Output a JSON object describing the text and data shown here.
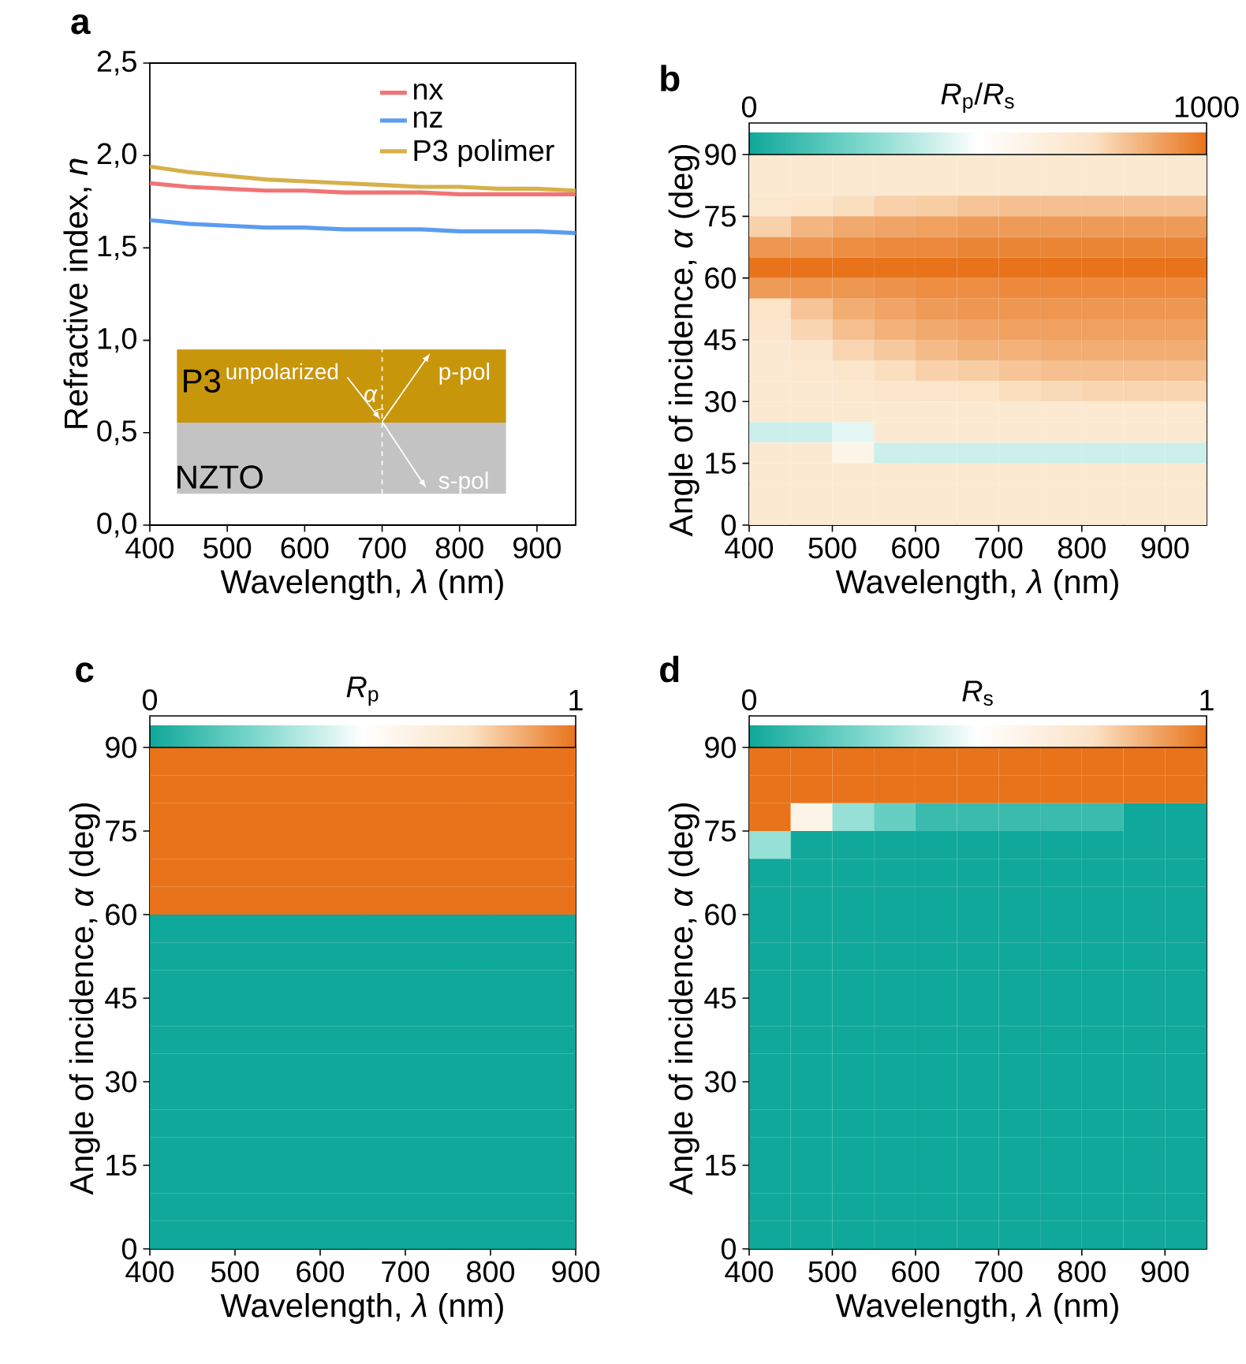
{
  "chart_data": [
    {
      "type": "line",
      "title": "**a**",
      "xlabel": "Wavelength, *λ* (nm)",
      "ylabel": "Refractive index, *n*",
      "x": [
        400,
        450,
        500,
        550,
        600,
        650,
        700,
        750,
        800,
        850,
        900,
        950
      ],
      "series": [
        {
          "name": "nx",
          "color": "#f07474",
          "values": [
            1.85,
            1.83,
            1.82,
            1.81,
            1.81,
            1.8,
            1.8,
            1.8,
            1.79,
            1.79,
            1.79,
            1.79
          ]
        },
        {
          "name": "nz",
          "color": "#5b9cf0",
          "values": [
            1.65,
            1.63,
            1.62,
            1.61,
            1.61,
            1.6,
            1.6,
            1.6,
            1.59,
            1.59,
            1.59,
            1.58
          ]
        },
        {
          "name": "P3 polimer",
          "color": "#d6b04a",
          "values": [
            1.94,
            1.91,
            1.89,
            1.87,
            1.86,
            1.85,
            1.84,
            1.83,
            1.83,
            1.82,
            1.82,
            1.81
          ]
        }
      ],
      "xlim": [
        400,
        950
      ],
      "ylim": [
        0,
        2.5
      ],
      "xticks": [
        400,
        500,
        600,
        700,
        800,
        900
      ],
      "yticks": [
        {
          "value": 0,
          "label": "0,0"
        },
        {
          "value": 0.5,
          "label": "0,5"
        },
        {
          "value": 1,
          "label": "1,0"
        },
        {
          "value": 1.5,
          "label": "1,5"
        },
        {
          "value": 2,
          "label": "2,0"
        },
        {
          "value": 2.5,
          "label": "2,5"
        }
      ],
      "legend": "top right",
      "marker": "none",
      "line_style": "solid",
      "annotations": [
        "P3",
        "unpolarized",
        "*α*",
        "p-pol",
        "NZTO",
        "s-pol"
      ]
    },
    {
      "type": "heatmap",
      "title": "**b**",
      "xlabel": "Wavelength, *λ* (nm)",
      "ylabel": "Angle of incidence, *α* (deg)",
      "clabel": "*R*$_{p}$/*R*$_{s}$",
      "colors": [
        "#0fa89a",
        "#7dd8cc",
        "#ffffff",
        "#fbe3c6",
        "#e8731a"
      ],
      "x": [
        425,
        475,
        525,
        575,
        625,
        675,
        725,
        775,
        825,
        875,
        925
      ],
      "y": [
        87.5,
        82.5,
        77.5,
        72.5,
        67.5,
        62.5,
        57.5,
        52.5,
        47.5,
        42.5,
        37.5,
        32.5,
        27.5,
        22.5,
        17.5,
        12.5,
        7.5,
        2.5
      ],
      "cells": [
        [
          700,
          700,
          700,
          700,
          700,
          700,
          700,
          700,
          700,
          700,
          700
        ],
        [
          700,
          700,
          700,
          700,
          700,
          700,
          700,
          700,
          700,
          700,
          700
        ],
        [
          710,
          730,
          760,
          790,
          800,
          820,
          830,
          830,
          830,
          830,
          830
        ],
        [
          790,
          850,
          880,
          890,
          900,
          910,
          910,
          910,
          910,
          910,
          910
        ],
        [
          920,
          920,
          940,
          950,
          950,
          960,
          960,
          960,
          960,
          960,
          960
        ],
        [
          1000,
          1000,
          1000,
          1000,
          1000,
          1000,
          1000,
          1000,
          1000,
          1000,
          1000
        ],
        [
          910,
          920,
          920,
          930,
          940,
          940,
          950,
          950,
          950,
          950,
          950
        ],
        [
          740,
          820,
          870,
          890,
          910,
          920,
          920,
          920,
          920,
          920,
          920
        ],
        [
          720,
          780,
          830,
          860,
          880,
          890,
          900,
          900,
          900,
          900,
          900
        ],
        [
          700,
          730,
          780,
          810,
          840,
          860,
          860,
          870,
          870,
          870,
          870
        ],
        [
          700,
          710,
          730,
          760,
          790,
          800,
          820,
          830,
          830,
          830,
          830
        ],
        [
          700,
          700,
          710,
          720,
          730,
          740,
          760,
          770,
          780,
          780,
          780
        ],
        [
          700,
          700,
          700,
          700,
          700,
          700,
          700,
          700,
          700,
          700,
          700
        ],
        [
          400,
          400,
          450,
          700,
          700,
          700,
          700,
          700,
          700,
          700,
          700
        ],
        [
          700,
          700,
          600,
          400,
          400,
          400,
          400,
          400,
          400,
          400,
          400
        ],
        [
          700,
          700,
          700,
          700,
          700,
          700,
          700,
          700,
          700,
          700,
          700
        ],
        [
          700,
          700,
          700,
          700,
          700,
          700,
          700,
          700,
          700,
          700,
          700
        ],
        [
          700,
          700,
          700,
          700,
          700,
          700,
          700,
          700,
          700,
          700,
          700
        ]
      ],
      "clim": [
        0,
        1000
      ],
      "cticks": [
        0,
        1000
      ],
      "xlim": [
        400,
        950
      ],
      "ylim": [
        0,
        90
      ],
      "xticks": [
        400,
        500,
        600,
        700,
        800,
        900
      ],
      "yticks": [
        0,
        15,
        30,
        45,
        60,
        75,
        90
      ]
    },
    {
      "type": "heatmap",
      "title": "**c**",
      "xlabel": "Wavelength, *λ* (nm)",
      "ylabel": "Angle of incidence, *α* (deg)",
      "clabel": "*R*$_{p}$",
      "colors": [
        "#0fa89a",
        "#7dd8cc",
        "#ffffff",
        "#fbe3c6",
        "#e8731a"
      ],
      "x": [
        425,
        475,
        525,
        575,
        625,
        675,
        725,
        775,
        825,
        875
      ],
      "y": [
        87.5,
        82.5,
        77.5,
        72.5,
        67.5,
        62.5,
        57.5,
        52.5,
        47.5,
        42.5,
        37.5,
        32.5,
        27.5,
        22.5,
        17.5,
        12.5,
        7.5,
        2.5
      ],
      "cells": [
        [
          1,
          1,
          1,
          1,
          1,
          1,
          1,
          1,
          1,
          1
        ],
        [
          1,
          1,
          1,
          1,
          1,
          1,
          1,
          1,
          1,
          1
        ],
        [
          1,
          1,
          1,
          1,
          1,
          1,
          1,
          1,
          1,
          1
        ],
        [
          1,
          1,
          1,
          1,
          1,
          1,
          1,
          1,
          1,
          1
        ],
        [
          1,
          1,
          1,
          1,
          1,
          1,
          1,
          1,
          1,
          1
        ],
        [
          1,
          1,
          1,
          1,
          1,
          1,
          1,
          1,
          1,
          1
        ],
        [
          0,
          0,
          0,
          0,
          0,
          0,
          0,
          0,
          0,
          0
        ],
        [
          0,
          0,
          0,
          0,
          0,
          0,
          0,
          0,
          0,
          0
        ],
        [
          0,
          0,
          0,
          0,
          0,
          0,
          0,
          0,
          0,
          0
        ],
        [
          0,
          0,
          0,
          0,
          0,
          0,
          0,
          0,
          0,
          0
        ],
        [
          0,
          0,
          0,
          0,
          0,
          0,
          0,
          0,
          0,
          0
        ],
        [
          0,
          0,
          0,
          0,
          0,
          0,
          0,
          0,
          0,
          0
        ],
        [
          0,
          0,
          0,
          0,
          0,
          0,
          0,
          0,
          0,
          0
        ],
        [
          0,
          0,
          0,
          0,
          0,
          0,
          0,
          0,
          0,
          0
        ],
        [
          0,
          0,
          0,
          0,
          0,
          0,
          0,
          0,
          0,
          0
        ],
        [
          0,
          0,
          0,
          0,
          0,
          0,
          0,
          0,
          0,
          0
        ],
        [
          0,
          0,
          0,
          0,
          0,
          0,
          0,
          0,
          0,
          0
        ],
        [
          0,
          0,
          0,
          0,
          0,
          0,
          0,
          0,
          0,
          0
        ]
      ],
      "clim": [
        0,
        1
      ],
      "cticks": [
        0,
        1
      ],
      "xlim": [
        400,
        900
      ],
      "ylim": [
        0,
        90
      ],
      "xticks": [
        400,
        500,
        600,
        700,
        800,
        900
      ],
      "yticks": [
        0,
        15,
        30,
        45,
        60,
        75,
        90
      ]
    },
    {
      "type": "heatmap",
      "title": "**d**",
      "xlabel": "Wavelength, *λ* (nm)",
      "ylabel": "Angle of incidence, *α* (deg)",
      "clabel": "*R*$_{s}$",
      "colors": [
        "#0fa89a",
        "#7dd8cc",
        "#ffffff",
        "#fbe3c6",
        "#e8731a"
      ],
      "x": [
        425,
        475,
        525,
        575,
        625,
        675,
        725,
        775,
        825,
        875,
        925
      ],
      "y": [
        87.5,
        82.5,
        77.5,
        72.5,
        67.5,
        62.5,
        57.5,
        52.5,
        47.5,
        42.5,
        37.5,
        32.5,
        27.5,
        22.5,
        17.5,
        12.5,
        7.5,
        2.5
      ],
      "cells": [
        [
          1,
          1,
          1,
          1,
          1,
          1,
          1,
          1,
          1,
          1,
          1
        ],
        [
          1,
          1,
          1,
          1,
          1,
          1,
          1,
          1,
          1,
          1,
          1
        ],
        [
          1,
          0.6,
          0.3,
          0.2,
          0.1,
          0.1,
          0.1,
          0.1,
          0.1,
          0,
          0
        ],
        [
          0.3,
          0,
          0,
          0,
          0,
          0,
          0,
          0,
          0,
          0,
          0
        ],
        [
          0,
          0,
          0,
          0,
          0,
          0,
          0,
          0,
          0,
          0,
          0
        ],
        [
          0,
          0,
          0,
          0,
          0,
          0,
          0,
          0,
          0,
          0,
          0
        ],
        [
          0,
          0,
          0,
          0,
          0,
          0,
          0,
          0,
          0,
          0,
          0
        ],
        [
          0,
          0,
          0,
          0,
          0,
          0,
          0,
          0,
          0,
          0,
          0
        ],
        [
          0,
          0,
          0,
          0,
          0,
          0,
          0,
          0,
          0,
          0,
          0
        ],
        [
          0,
          0,
          0,
          0,
          0,
          0,
          0,
          0,
          0,
          0,
          0
        ],
        [
          0,
          0,
          0,
          0,
          0,
          0,
          0,
          0,
          0,
          0,
          0
        ],
        [
          0,
          0,
          0,
          0,
          0,
          0,
          0,
          0,
          0,
          0,
          0
        ],
        [
          0,
          0,
          0,
          0,
          0,
          0,
          0,
          0,
          0,
          0,
          0
        ],
        [
          0,
          0,
          0,
          0,
          0,
          0,
          0,
          0,
          0,
          0,
          0
        ],
        [
          0,
          0,
          0,
          0,
          0,
          0,
          0,
          0,
          0,
          0,
          0
        ],
        [
          0,
          0,
          0,
          0,
          0,
          0,
          0,
          0,
          0,
          0,
          0
        ],
        [
          0,
          0,
          0,
          0,
          0,
          0,
          0,
          0,
          0,
          0,
          0
        ],
        [
          0,
          0,
          0,
          0,
          0,
          0,
          0,
          0,
          0,
          0,
          0
        ]
      ],
      "clim": [
        0,
        1
      ],
      "cticks": [
        0,
        1
      ],
      "xlim": [
        400,
        950
      ],
      "ylim": [
        0,
        90
      ],
      "xticks": [
        400,
        500,
        600,
        700,
        800,
        900
      ],
      "yticks": [
        0,
        15,
        30,
        45,
        60,
        75,
        90
      ]
    }
  ]
}
